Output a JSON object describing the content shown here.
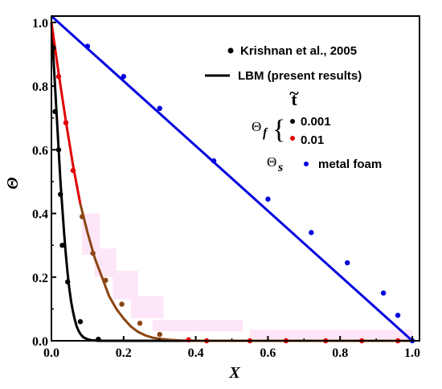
{
  "chart_data": {
    "type": "line",
    "title": "",
    "xlabel": "X",
    "ylabel": "Θ",
    "xlim": [
      0.0,
      1.02
    ],
    "ylim": [
      0.0,
      1.02
    ],
    "xticks": [
      "0.0",
      "0.2",
      "0.4",
      "0.6",
      "0.8",
      "1.0"
    ],
    "yticks": [
      "0.0",
      "0.2",
      "0.4",
      "0.6",
      "0.8",
      "1.0"
    ],
    "grid": false,
    "legend": {
      "placement": "top-right",
      "marker_label": "Krishnan et al., 2005",
      "line_label": "LBM (present results)",
      "time_symbol": "t",
      "time_accent": "~",
      "fluid_symbol": "Θ",
      "fluid_subscript": "f",
      "brace": "{",
      "fluid_times": [
        "0.001",
        "0.01"
      ],
      "solid_symbol": "Θ",
      "solid_subscript": "s",
      "solid_label": "metal foam"
    },
    "series": [
      {
        "name": "0.001",
        "color": "#000000",
        "line_x": [
          0.0,
          0.005,
          0.01,
          0.015,
          0.02,
          0.025,
          0.03,
          0.035,
          0.04,
          0.045,
          0.05,
          0.055,
          0.06,
          0.065,
          0.07,
          0.075,
          0.08,
          0.085,
          0.09,
          0.1,
          0.11,
          0.12,
          0.13,
          0.15,
          0.2,
          1.0
        ],
        "line_y": [
          1.0,
          0.9,
          0.8,
          0.7,
          0.6,
          0.5,
          0.42,
          0.34,
          0.27,
          0.21,
          0.16,
          0.12,
          0.09,
          0.065,
          0.045,
          0.032,
          0.022,
          0.015,
          0.01,
          0.005,
          0.002,
          0.001,
          0.0,
          0.0,
          0.0,
          0.0
        ],
        "points_x": [
          0.005,
          0.01,
          0.02,
          0.025,
          0.03,
          0.045,
          0.08,
          0.13
        ],
        "points_y": [
          0.92,
          0.72,
          0.6,
          0.46,
          0.3,
          0.185,
          0.06,
          0.005
        ]
      },
      {
        "name": "0.01",
        "color": "#e00000",
        "color2": "#8b4513",
        "line_x": [
          0.0,
          0.02,
          0.04,
          0.06,
          0.08,
          0.1,
          0.12,
          0.14,
          0.16,
          0.18,
          0.2,
          0.22,
          0.24,
          0.26,
          0.28,
          0.3,
          0.33,
          0.36,
          0.4,
          0.5,
          1.0
        ],
        "line_y": [
          1.0,
          0.84,
          0.69,
          0.55,
          0.43,
          0.34,
          0.26,
          0.2,
          0.14,
          0.1,
          0.07,
          0.045,
          0.028,
          0.017,
          0.01,
          0.006,
          0.003,
          0.001,
          0.0,
          0.0,
          0.0
        ],
        "points_x": [
          0.02,
          0.04,
          0.06,
          0.085,
          0.115,
          0.15,
          0.195,
          0.245,
          0.3,
          0.38,
          0.43,
          0.55,
          0.65,
          0.76,
          0.86,
          0.96
        ],
        "points_y": [
          0.83,
          0.685,
          0.535,
          0.39,
          0.275,
          0.19,
          0.115,
          0.055,
          0.02,
          0.003,
          0.0,
          0.0,
          0.0,
          0.0,
          0.0,
          0.0
        ]
      },
      {
        "name": "metal foam",
        "color": "#0000e0",
        "line_x": [
          0.0,
          1.0
        ],
        "line_y": [
          1.02,
          0.0
        ],
        "points_x": [
          0.1,
          0.2,
          0.3,
          0.45,
          0.6,
          0.72,
          0.82,
          0.92,
          0.96,
          1.0
        ],
        "points_y": [
          0.925,
          0.83,
          0.73,
          0.565,
          0.445,
          0.34,
          0.245,
          0.15,
          0.08,
          0.0
        ]
      }
    ]
  }
}
